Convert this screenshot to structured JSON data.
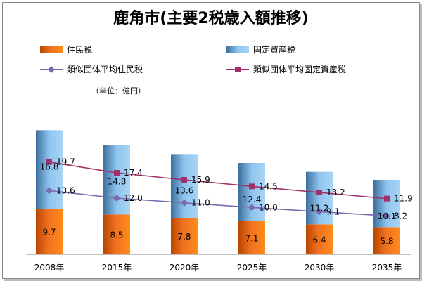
{
  "chart_data": {
    "type": "bar",
    "title": "鹿角市(主要2税歳入額推移)",
    "unit_label": "（単位：億円）",
    "categories": [
      "2008年",
      "2015年",
      "2020年",
      "2025年",
      "2030年",
      "2035年"
    ],
    "stacked": true,
    "ylim": [
      0,
      30
    ],
    "grid": false,
    "legend_position": "top",
    "series": [
      {
        "name": "住民税",
        "kind": "bar",
        "values": [
          9.7,
          8.5,
          7.8,
          7.1,
          6.4,
          5.8
        ],
        "color": "#f07020"
      },
      {
        "name": "固定資産税",
        "kind": "bar",
        "values": [
          16.8,
          14.8,
          13.6,
          12.4,
          11.2,
          10.1
        ],
        "color": "#8ec5ee"
      },
      {
        "name": "類似団体平均住民税",
        "kind": "line",
        "values": [
          13.6,
          12.0,
          11.0,
          10.0,
          9.1,
          8.2
        ],
        "color": "#7b68b0"
      },
      {
        "name": "類似団体平均固定資産税",
        "kind": "line",
        "values": [
          19.7,
          17.4,
          15.9,
          14.5,
          13.2,
          11.9
        ],
        "color": "#a0306a"
      }
    ]
  }
}
